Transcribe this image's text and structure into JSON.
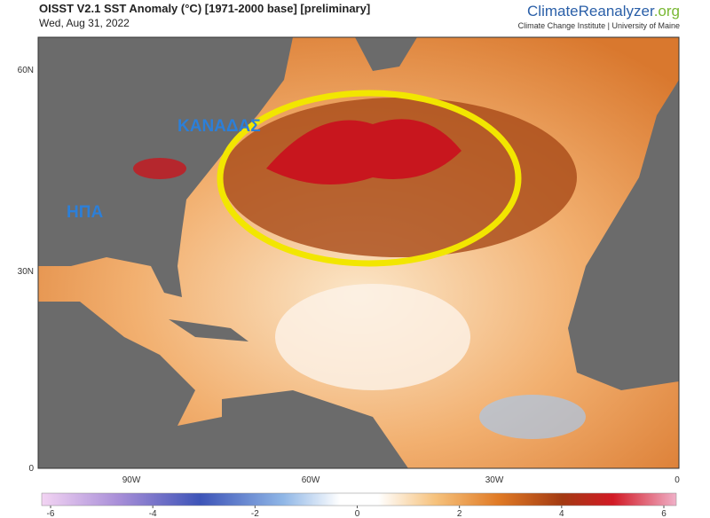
{
  "header": {
    "title": "OISST V2.1 SST Anomaly (°C) [1971-2000 base] [preliminary]",
    "date": "Wed, Aug 31, 2022",
    "brand_main": "ClimateReanalyzer",
    "brand_suffix": ".org",
    "brand_sub": "Climate Change Institute | University of Maine"
  },
  "map": {
    "lat_labels": [
      "60N",
      "30N",
      "0"
    ],
    "lon_labels": [
      "90W",
      "60W",
      "30W",
      "0"
    ],
    "region_labels": [
      "ΚΑΝΑΔΑΣ",
      "ΗΠΑ"
    ]
  },
  "colorbar": {
    "lim": [
      -6,
      6
    ],
    "ticks": [
      -6,
      -4,
      -2,
      0,
      2,
      4,
      6
    ]
  }
}
